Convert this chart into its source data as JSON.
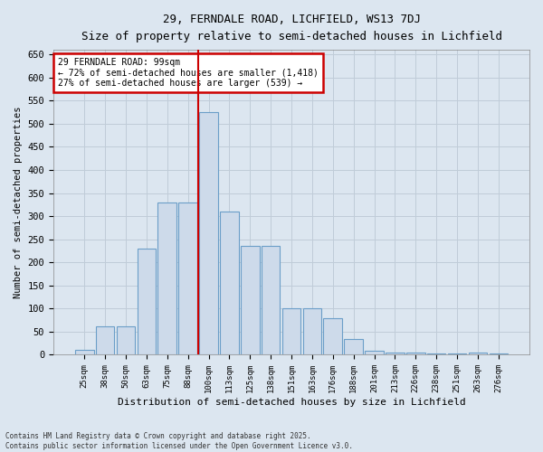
{
  "title_line1": "29, FERNDALE ROAD, LICHFIELD, WS13 7DJ",
  "title_line2": "Size of property relative to semi-detached houses in Lichfield",
  "xlabel": "Distribution of semi-detached houses by size in Lichfield",
  "ylabel": "Number of semi-detached properties",
  "categories": [
    "25sqm",
    "38sqm",
    "50sqm",
    "63sqm",
    "75sqm",
    "88sqm",
    "100sqm",
    "113sqm",
    "125sqm",
    "138sqm",
    "151sqm",
    "163sqm",
    "176sqm",
    "188sqm",
    "201sqm",
    "213sqm",
    "226sqm",
    "238sqm",
    "251sqm",
    "263sqm",
    "276sqm"
  ],
  "values": [
    10,
    62,
    62,
    230,
    330,
    330,
    525,
    310,
    235,
    235,
    100,
    100,
    80,
    35,
    8,
    5,
    5,
    2,
    2,
    5,
    2
  ],
  "bar_color": "#cddaea",
  "bar_edge_color": "#6b9ec8",
  "grid_color": "#c0ccd8",
  "background_color": "#dce6f0",
  "plot_bg_color": "#dce6f0",
  "fig_bg_color": "#dce6f0",
  "vline_x_index": 6,
  "vline_color": "#cc0000",
  "annotation_title": "29 FERNDALE ROAD: 99sqm",
  "annotation_line1": "← 72% of semi-detached houses are smaller (1,418)",
  "annotation_line2": "27% of semi-detached houses are larger (539) →",
  "annotation_box_color": "#cc0000",
  "ylim": [
    0,
    660
  ],
  "yticks": [
    0,
    50,
    100,
    150,
    200,
    250,
    300,
    350,
    400,
    450,
    500,
    550,
    600,
    650
  ],
  "footnote_line1": "Contains HM Land Registry data © Crown copyright and database right 2025.",
  "footnote_line2": "Contains public sector information licensed under the Open Government Licence v3.0."
}
